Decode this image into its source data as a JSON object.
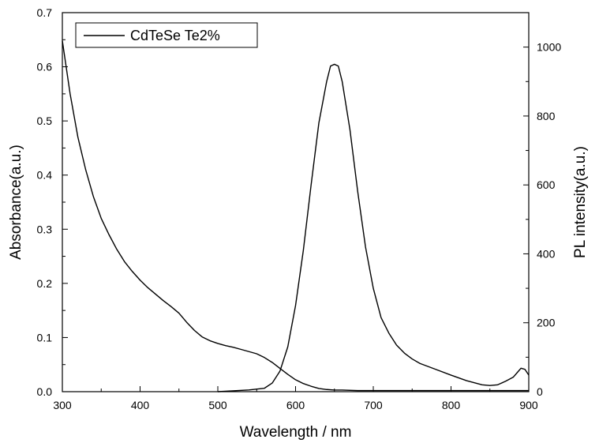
{
  "chart_data": {
    "type": "line",
    "title": "",
    "xlabel": "Wavelength / nm",
    "ylabel_left": "Absorbance(a.u.)",
    "ylabel_right": "PL intensity(a.u.)",
    "xlim": [
      300,
      900
    ],
    "ylim_left": [
      0,
      0.7
    ],
    "ylim_right": [
      0,
      1100
    ],
    "x_ticks": [
      "300",
      "400",
      "500",
      "600",
      "700",
      "800",
      "900"
    ],
    "y_left_ticks": [
      "0.0",
      "0.1",
      "0.2",
      "0.3",
      "0.4",
      "0.5",
      "0.6",
      "0.7"
    ],
    "y_right_ticks": [
      "0",
      "200",
      "400",
      "600",
      "800",
      "1000"
    ],
    "grid": false,
    "legend": {
      "position": "top-left",
      "entries": [
        "CdTeSe Te2%"
      ]
    },
    "series": [
      {
        "name": "CdTeSe Te2%",
        "axis": "left",
        "x": [
          300,
          310,
          320,
          330,
          340,
          350,
          360,
          370,
          380,
          390,
          400,
          410,
          420,
          430,
          440,
          450,
          460,
          470,
          480,
          490,
          500,
          510,
          520,
          530,
          540,
          550,
          560,
          570,
          580,
          590,
          600,
          610,
          620,
          630,
          640,
          650,
          660,
          680,
          700,
          750,
          800,
          850,
          900
        ],
        "y": [
          0.648,
          0.55,
          0.47,
          0.41,
          0.36,
          0.32,
          0.29,
          0.263,
          0.24,
          0.222,
          0.206,
          0.192,
          0.18,
          0.168,
          0.157,
          0.145,
          0.128,
          0.113,
          0.101,
          0.094,
          0.089,
          0.085,
          0.082,
          0.078,
          0.074,
          0.07,
          0.063,
          0.054,
          0.043,
          0.032,
          0.022,
          0.015,
          0.01,
          0.006,
          0.004,
          0.003,
          0.003,
          0.002,
          0.002,
          0.002,
          0.002,
          0.002,
          0.002
        ]
      },
      {
        "name": "",
        "axis": "right",
        "x": [
          500,
          540,
          560,
          570,
          580,
          590,
          600,
          610,
          620,
          630,
          640,
          645,
          650,
          655,
          660,
          670,
          680,
          690,
          700,
          710,
          720,
          730,
          740,
          750,
          760,
          780,
          800,
          820,
          840,
          850,
          860,
          870,
          880,
          885,
          890,
          895,
          900
        ],
        "y": [
          0,
          5,
          10,
          25,
          60,
          130,
          250,
          410,
          600,
          780,
          900,
          945,
          950,
          945,
          900,
          760,
          580,
          420,
          300,
          215,
          170,
          135,
          112,
          95,
          82,
          65,
          48,
          32,
          20,
          18,
          20,
          30,
          42,
          55,
          68,
          65,
          48
        ]
      }
    ]
  }
}
